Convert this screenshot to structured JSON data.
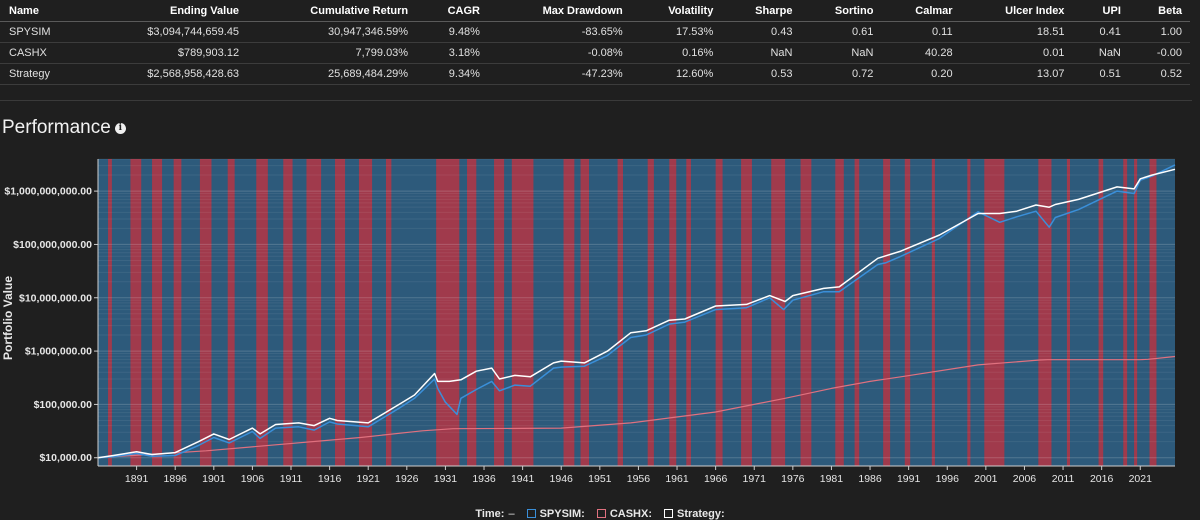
{
  "table": {
    "headers": [
      "Name",
      "Ending Value",
      "Cumulative Return",
      "CAGR",
      "Max Drawdown",
      "Volatility",
      "Sharpe",
      "Sortino",
      "Calmar",
      "Ulcer Index",
      "UPI",
      "Beta"
    ],
    "rows": [
      [
        "SPYSIM",
        "$3,094,744,659.45",
        "30,947,346.59%",
        "9.48%",
        "-83.65%",
        "17.53%",
        "0.43",
        "0.61",
        "0.11",
        "18.51",
        "0.41",
        "1.00"
      ],
      [
        "CASHX",
        "$789,903.12",
        "7,799.03%",
        "3.18%",
        "-0.08%",
        "0.16%",
        "NaN",
        "NaN",
        "40.28",
        "0.01",
        "NaN",
        "-0.00"
      ],
      [
        "Strategy",
        "$2,568,958,428.63",
        "25,689,484.29%",
        "9.34%",
        "-47.23%",
        "12.60%",
        "0.53",
        "0.72",
        "0.20",
        "13.07",
        "0.51",
        "0.52"
      ]
    ]
  },
  "section": {
    "title": "Performance",
    "info_icon": "info-icon"
  },
  "legend": {
    "time_label": "Time:",
    "time_dash": "–",
    "items": [
      {
        "name": "SPYSIM:",
        "color": "#3a8fd9"
      },
      {
        "name": "CASHX:",
        "color": "#e0717f"
      },
      {
        "name": "Strategy:",
        "color": "#ffffff"
      }
    ]
  },
  "colors": {
    "background": "#1f1f1f",
    "plot_blue": "#2d5a7b",
    "regime_red": "#a03a4c",
    "spysim": "#3a8fd9",
    "cashx": "#e0717f",
    "strategy": "#ffffff"
  },
  "chart_data": {
    "type": "line",
    "title": "Performance",
    "xlabel": "",
    "ylabel": "Portfolio Value",
    "y_scale": "log",
    "ylim": [
      7000,
      4000000000
    ],
    "xlim": [
      1886,
      2025.5
    ],
    "x_ticks": [
      1891,
      1896,
      1901,
      1906,
      1911,
      1916,
      1921,
      1926,
      1931,
      1936,
      1941,
      1946,
      1951,
      1956,
      1961,
      1966,
      1971,
      1976,
      1981,
      1986,
      1991,
      1996,
      2001,
      2006,
      2011,
      2016,
      2021
    ],
    "y_ticks": [
      {
        "value": 10000,
        "label": "$10,000.00"
      },
      {
        "value": 100000,
        "label": "$100,000.00"
      },
      {
        "value": 1000000,
        "label": "$1,000,000.00"
      },
      {
        "value": 10000000,
        "label": "$10,000,000.00"
      },
      {
        "value": 100000000,
        "label": "$100,000,000.00"
      },
      {
        "value": 1000000000,
        "label": "$1,000,000,000.00"
      }
    ],
    "series": [
      {
        "name": "SPYSIM",
        "x": [
          1886,
          1888,
          1891,
          1893,
          1896,
          1899,
          1901,
          1903,
          1906,
          1907,
          1909,
          1912,
          1914,
          1916,
          1917,
          1921,
          1925,
          1927,
          1929.6,
          1930,
          1931,
          1932.5,
          1933,
          1935,
          1937,
          1938,
          1940,
          1942,
          1945,
          1946,
          1949,
          1952,
          1955,
          1957,
          1960,
          1962,
          1966,
          1970,
          1973,
          1974.8,
          1976,
          1980,
          1982,
          1987,
          1988,
          1990,
          1995,
          2000,
          2002.8,
          2005,
          2007.5,
          2009.2,
          2010,
          2013,
          2018,
          2020.2,
          2021,
          2022.5,
          2025.5
        ],
        "values": [
          10000,
          10500,
          12000,
          10700,
          11000,
          17000,
          24000,
          19000,
          31000,
          23000,
          36000,
          38000,
          33000,
          47000,
          43000,
          38000,
          85000,
          130000,
          300000,
          200000,
          110000,
          65000,
          130000,
          190000,
          270000,
          180000,
          230000,
          220000,
          480000,
          500000,
          520000,
          830000,
          1800000,
          2000000,
          3200000,
          3500000,
          6000000,
          6500000,
          10000000,
          6000000,
          9000000,
          13000000,
          13000000,
          42000000,
          45000000,
          60000000,
          130000000,
          410000000,
          260000000,
          330000000,
          420000000,
          210000000,
          320000000,
          450000000,
          1000000000,
          900000000,
          1600000000,
          1900000000,
          3094744659.45
        ]
      },
      {
        "name": "CASHX",
        "x": [
          1886,
          1900,
          1920,
          1928,
          1932,
          1941,
          1946,
          1955,
          1966,
          1975,
          1981,
          1986,
          1990,
          2000,
          2008,
          2009,
          2021,
          2022,
          2025.5
        ],
        "values": [
          10000,
          13500,
          24000,
          32000,
          35000,
          35500,
          36000,
          45000,
          72000,
          130000,
          200000,
          270000,
          330000,
          550000,
          680000,
          690000,
          690000,
          700000,
          789903.12
        ]
      },
      {
        "name": "Strategy",
        "x": [
          1886,
          1888,
          1891,
          1893,
          1896,
          1899,
          1901,
          1903,
          1906,
          1907,
          1909,
          1912,
          1914,
          1916,
          1917,
          1921,
          1925,
          1927,
          1929.6,
          1930,
          1931.5,
          1933,
          1935,
          1937,
          1938,
          1940,
          1942,
          1945,
          1946,
          1949,
          1952,
          1955,
          1957,
          1960,
          1962,
          1966,
          1970,
          1973,
          1975,
          1976,
          1980,
          1982,
          1987,
          1990,
          1995,
          2000,
          2002.8,
          2005,
          2007.5,
          2009.2,
          2010,
          2013,
          2018,
          2020.2,
          2021,
          2022.5,
          2025.5
        ],
        "values": [
          10000,
          11000,
          13000,
          11500,
          12500,
          20000,
          28000,
          22000,
          36000,
          28000,
          42000,
          45000,
          40000,
          55000,
          50000,
          45000,
          100000,
          150000,
          380000,
          270000,
          270000,
          290000,
          420000,
          480000,
          300000,
          350000,
          330000,
          600000,
          650000,
          600000,
          1000000,
          2200000,
          2400000,
          3800000,
          4000000,
          7000000,
          7500000,
          11000000,
          8500000,
          11000000,
          15000000,
          16000000,
          55000000,
          75000000,
          150000000,
          380000000,
          380000000,
          420000000,
          550000000,
          500000000,
          560000000,
          700000000,
          1200000000,
          1100000000,
          1700000000,
          2000000000,
          2568958428.63
        ]
      }
    ],
    "risk_off_periods": [
      [
        1887.3,
        1887.8
      ],
      [
        1890.2,
        1891.6
      ],
      [
        1893.0,
        1894.3
      ],
      [
        1895.8,
        1896.8
      ],
      [
        1899.2,
        1900.7
      ],
      [
        1902.8,
        1903.7
      ],
      [
        1906.5,
        1908.0
      ],
      [
        1910.0,
        1911.2
      ],
      [
        1913.0,
        1914.9
      ],
      [
        1916.7,
        1918.0
      ],
      [
        1919.8,
        1921.5
      ],
      [
        1923.3,
        1924.0
      ],
      [
        1929.8,
        1932.8
      ],
      [
        1933.8,
        1935.0
      ],
      [
        1937.3,
        1938.6
      ],
      [
        1939.6,
        1942.4
      ],
      [
        1946.3,
        1947.7
      ],
      [
        1948.5,
        1949.6
      ],
      [
        1953.3,
        1954.0
      ],
      [
        1957.2,
        1958.0
      ],
      [
        1960.0,
        1960.9
      ],
      [
        1962.2,
        1962.8
      ],
      [
        1966.0,
        1966.9
      ],
      [
        1969.3,
        1970.7
      ],
      [
        1973.2,
        1975.0
      ],
      [
        1977.0,
        1978.4
      ],
      [
        1981.5,
        1982.6
      ],
      [
        1984.0,
        1984.6
      ],
      [
        1987.7,
        1988.6
      ],
      [
        1990.5,
        1991.2
      ],
      [
        1994.0,
        1994.4
      ],
      [
        1998.6,
        1999.0
      ],
      [
        2000.8,
        2003.4
      ],
      [
        2007.8,
        2009.5
      ],
      [
        2011.5,
        2011.9
      ],
      [
        2015.6,
        2016.2
      ],
      [
        2018.8,
        2019.3
      ],
      [
        2020.2,
        2020.6
      ],
      [
        2022.2,
        2023.1
      ]
    ]
  }
}
